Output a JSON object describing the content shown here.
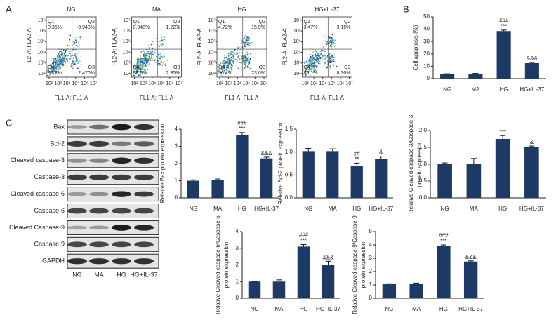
{
  "panel_labels": [
    "A",
    "B",
    "C"
  ],
  "flow_cytometry": {
    "x_label": "FL1-A: FL1-A",
    "y_label": "FL2-A: FLA2-A",
    "lim": [
      100,
      10000000
    ],
    "ticks": [
      {
        "value": 100,
        "label": "10²"
      },
      {
        "value": 1000,
        "label": "10³"
      },
      {
        "value": 10000,
        "label": "10⁴"
      },
      {
        "value": 100000,
        "label": "10⁵"
      },
      {
        "value": 1000000,
        "label": "10⁶"
      },
      {
        "value": 10000000,
        "label": "10⁷"
      }
    ],
    "plots": [
      {
        "title": "NG",
        "quadrants": [
          {
            "name": "Q1",
            "value": "0.36%"
          },
          {
            "name": "Q2",
            "value": "0.940%"
          },
          {
            "name": "Q3",
            "value": "2.470%"
          },
          {
            "name": "Q4",
            "value": "96.2%"
          }
        ]
      },
      {
        "title": "MA",
        "quadrants": [
          {
            "name": "Q1",
            "value": "0.948%"
          },
          {
            "name": "Q2",
            "value": "1.22%"
          },
          {
            "name": "Q3",
            "value": "2.35%"
          },
          {
            "name": "Q4",
            "value": "95.5%"
          }
        ]
      },
      {
        "title": "HG",
        "quadrants": [
          {
            "name": "Q1",
            "value": "4.72%"
          },
          {
            "name": "Q2",
            "value": "15.9%"
          },
          {
            "name": "Q3",
            "value": "23.0%"
          },
          {
            "name": "Q4",
            "value": "56.4%"
          }
        ]
      },
      {
        "title": "HG+IL-37",
        "quadrants": [
          {
            "name": "Q1",
            "value": "3.47%"
          },
          {
            "name": "Q2",
            "value": "3.15%"
          },
          {
            "name": "Q3",
            "value": "8.30%"
          },
          {
            "name": "Q4",
            "value": "85.1%"
          }
        ]
      }
    ]
  },
  "western_blot": {
    "rows": [
      "Bax",
      "Bcl-2",
      "Cleaved caspase-3",
      "Caspase-3",
      "Cleaved caspase-6",
      "Caspase-6",
      "Cleaved Caspase-9",
      "Caspase-9",
      "GAPDH"
    ],
    "lanes": [
      "NG",
      "MA",
      "HG",
      "HG+IL-37"
    ]
  },
  "chart_data": [
    {
      "type": "bar",
      "y_label": [
        "Cell apoptosis (%)"
      ],
      "categories": [
        "NG",
        "MA",
        "HG",
        "HG+IL-37"
      ],
      "values": [
        3.5,
        3.8,
        38.5,
        12.5
      ],
      "errors": [
        0.4,
        0.4,
        0.8,
        0.6
      ],
      "color": "#1d3a66",
      "annotations": [
        [],
        [],
        [
          "###",
          "***"
        ],
        [
          "&&&"
        ]
      ],
      "ylim": [
        0,
        50
      ],
      "yticks": [
        0,
        10,
        20,
        30,
        40,
        50
      ]
    },
    {
      "type": "bar",
      "y_label": [
        "Relative Bax protein expression"
      ],
      "categories": [
        "NG",
        "MA",
        "HG",
        "HG+IL-37"
      ],
      "values": [
        1.0,
        1.05,
        3.65,
        2.3
      ],
      "errors": [
        0.05,
        0.05,
        0.15,
        0.07
      ],
      "color": "#1d3a66",
      "annotations": [
        [],
        [],
        [
          "###",
          "***"
        ],
        [
          "&&&"
        ]
      ],
      "ylim": [
        0,
        4
      ],
      "yticks": [
        0,
        1,
        2,
        3,
        4
      ]
    },
    {
      "type": "bar",
      "y_label": [
        "Relative Bcl-2 protein expression"
      ],
      "categories": [
        "NG",
        "MA",
        "HG",
        "HG+IL-37"
      ],
      "values": [
        1.02,
        1.02,
        0.7,
        0.85
      ],
      "errors": [
        0.06,
        0.05,
        0.06,
        0.06
      ],
      "color": "#1d3a66",
      "annotations": [
        [],
        [],
        [
          "##",
          "**"
        ],
        [
          "&"
        ]
      ],
      "ylim": [
        0,
        1.5
      ],
      "yticks": [
        {
          "value": 0,
          "label": "0.0"
        },
        0.5,
        {
          "value": 1,
          "label": "1.0"
        },
        1.5
      ]
    },
    {
      "type": "bar",
      "y_label": [
        "Relative Cleaved caspase-3/Caspase-3",
        "protein expression"
      ],
      "categories": [
        "NG",
        "MA",
        "HG",
        "HG+IL-37"
      ],
      "values": [
        1.02,
        1.02,
        1.75,
        1.5
      ],
      "errors": [
        0.02,
        0.15,
        0.1,
        0.04
      ],
      "color": "#1d3a66",
      "annotations": [
        [],
        [],
        [
          "***"
        ],
        [
          "&"
        ]
      ],
      "ylim": [
        0,
        2
      ],
      "yticks": [
        {
          "value": 0,
          "label": "0.0"
        },
        0.5,
        {
          "value": 1,
          "label": "1.0"
        },
        1.5,
        {
          "value": 2,
          "label": "2.0"
        }
      ]
    },
    {
      "type": "bar",
      "y_label": [
        "Relative Cleaved caspase-6/Caspase-6",
        "protein expression"
      ],
      "categories": [
        "NG",
        "MA",
        "HG",
        "HG+IL-37"
      ],
      "values": [
        1.0,
        1.0,
        3.1,
        2.0
      ],
      "errors": [
        0.01,
        0.1,
        0.12,
        0.22
      ],
      "color": "#1d3a66",
      "annotations": [
        [],
        [],
        [
          "###",
          "***"
        ],
        [
          "&&&"
        ]
      ],
      "ylim": [
        0,
        4
      ],
      "yticks": [
        0,
        1,
        2,
        3,
        4
      ]
    },
    {
      "type": "bar",
      "y_label": [
        "Relative Cleaved caspase-9/Caspase-9",
        "protein expression"
      ],
      "categories": [
        "NG",
        "MA",
        "HG",
        "HG+IL-37"
      ],
      "values": [
        1.05,
        1.1,
        3.95,
        2.75
      ],
      "errors": [
        0.04,
        0.04,
        0.05,
        0.05
      ],
      "color": "#1d3a66",
      "annotations": [
        [],
        [],
        [
          "###",
          "***"
        ],
        [
          "&&&"
        ]
      ],
      "ylim": [
        0,
        5
      ],
      "yticks": [
        0,
        1,
        2,
        3,
        4,
        5
      ]
    }
  ]
}
